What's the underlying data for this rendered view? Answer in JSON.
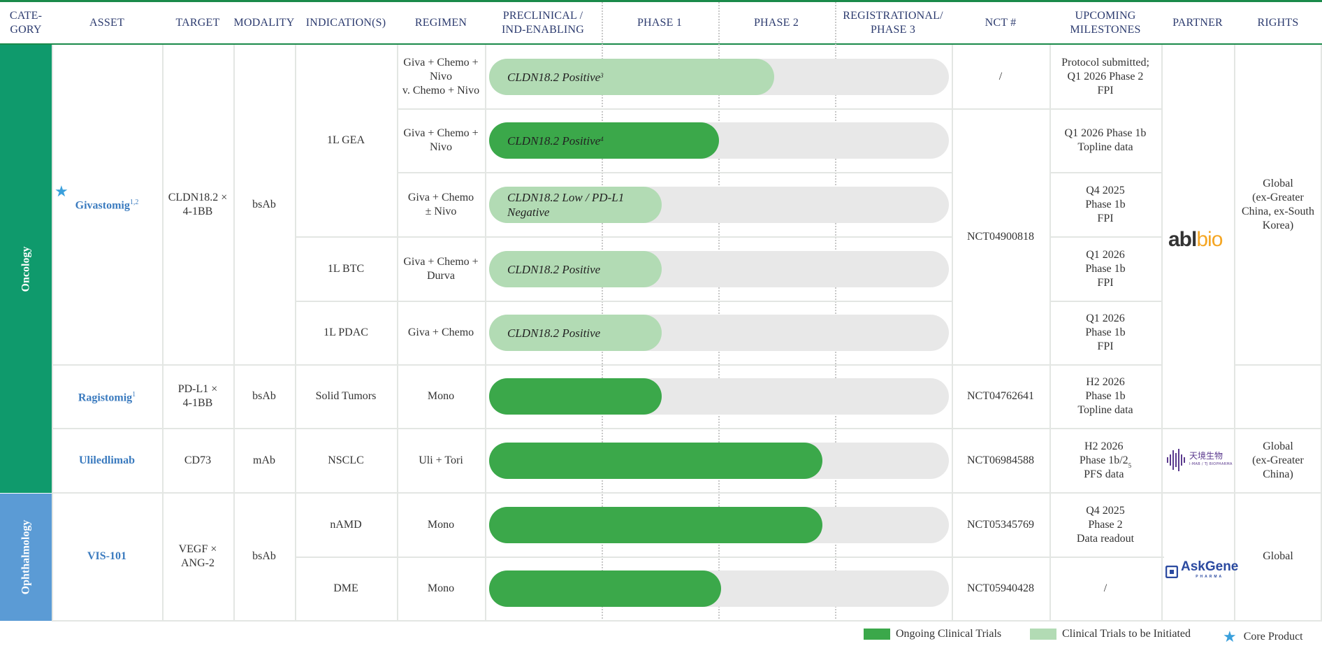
{
  "headers": {
    "category": "CATE-\nGORY",
    "asset": "ASSET",
    "target": "TARGET",
    "modality": "MODALITY",
    "indications": "INDICATION(S)",
    "regimen": "REGIMEN",
    "preclinical": "PRECLINICAL /\nIND-ENABLING",
    "phase1": "PHASE 1",
    "phase2": "PHASE 2",
    "phase3": "REGISTRATIONAL/\nPHASE 3",
    "nct": "NCT #",
    "milestones": "UPCOMING\nMILESTONES",
    "partner": "PARTNER",
    "rights": "RIGHTS"
  },
  "categories": [
    {
      "label": "Oncology",
      "color": "#0f9a6c"
    },
    {
      "label": "Ophthalmology",
      "color": "#5b9bd5"
    }
  ],
  "assets": {
    "givastomig": {
      "name": "Givastomig",
      "sup": "1,2",
      "target": "CLDN18.2 ×\n4-1BB",
      "modality": "bsAb"
    },
    "ragistomig": {
      "name": "Ragistomig",
      "sup": "1",
      "target": "PD-L1 ×\n4-1BB",
      "modality": "bsAb"
    },
    "uliledlimab": {
      "name": "Uliledlimab",
      "sup": "",
      "target": "CD73",
      "modality": "mAb"
    },
    "vis101": {
      "name": "VIS-101",
      "sup": "",
      "target": "VEGF ×\nANG-2",
      "modality": "bsAb"
    }
  },
  "indications": {
    "gea": "1L GEA",
    "btc": "1L BTC",
    "pdac": "1L PDAC",
    "solid": "Solid Tumors",
    "nsclc": "NSCLC",
    "namd": "nAMD",
    "dme": "DME"
  },
  "rows": [
    {
      "regimen": "Giva + Chemo +\nNivo\nv. Chemo + Nivo",
      "bar_label": "CLDN18.2 Positive",
      "bar_sup": "3",
      "status": "initiated",
      "progress": 0.62,
      "milestone": "Protocol submitted;\nQ1 2026 Phase 2\nFPI"
    },
    {
      "regimen": "Giva + Chemo +\nNivo",
      "bar_label": "CLDN18.2 Positive",
      "bar_sup": "4",
      "status": "ongoing",
      "progress": 0.5,
      "milestone": "Q1 2026 Phase 1b\nTopline data"
    },
    {
      "regimen": "Giva + Chemo\n± Nivo",
      "bar_label": "CLDN18.2 Low / PD-L1\nNegative",
      "bar_sup": "",
      "status": "initiated",
      "progress": 0.375,
      "milestone": "Q4 2025\nPhase 1b\nFPI"
    },
    {
      "regimen": "Giva + Chemo +\nDurva",
      "bar_label": "CLDN18.2 Positive",
      "bar_sup": "",
      "status": "initiated",
      "progress": 0.375,
      "milestone": "Q1 2026\nPhase 1b\nFPI"
    },
    {
      "regimen": "Giva + Chemo",
      "bar_label": "CLDN18.2 Positive",
      "bar_sup": "",
      "status": "initiated",
      "progress": 0.375,
      "milestone": "Q1 2026\nPhase 1b\nFPI"
    },
    {
      "regimen": "Mono",
      "bar_label": "",
      "bar_sup": "",
      "status": "ongoing",
      "progress": 0.375,
      "milestone": "H2 2026\nPhase 1b\nTopline data"
    },
    {
      "regimen": "Uli + Tori",
      "bar_label": "",
      "bar_sup": "",
      "status": "ongoing",
      "progress": 0.725,
      "milestone": "H2 2026\nPhase 1b/2\nPFS data",
      "milestone_sup": "5"
    },
    {
      "regimen": "Mono",
      "bar_label": "",
      "bar_sup": "",
      "status": "ongoing",
      "progress": 0.725,
      "milestone": "Q4 2025\nPhase 2\nData readout"
    },
    {
      "regimen": "Mono",
      "bar_label": "",
      "bar_sup": "",
      "status": "ongoing",
      "progress": 0.505,
      "milestone": "/"
    }
  ],
  "nct": {
    "r0": "/",
    "giva": "NCT04900818",
    "ragi": "NCT04762641",
    "uli": "NCT06984588",
    "namd": "NCT05345769",
    "dme": "NCT05940428"
  },
  "partners": {
    "abl_main": "abl",
    "abl_accent": "bio",
    "tj_cn": "天境生物",
    "tj_en": "I-MAB / TJ BIOPHARMA",
    "askgene": "AskGene",
    "askgene_sub": "PHARMA"
  },
  "rights": {
    "givastomig": "Global\n(ex-Greater\nChina, ex-South\nKorea)",
    "uliledlimab": "Global\n(ex-Greater\nChina)",
    "vis101": "Global"
  },
  "legend": {
    "ongoing": "Ongoing Clinical Trials",
    "initiated": "Clinical Trials to be Initiated",
    "core": "Core Product"
  },
  "colors": {
    "ongoing": "#3ba84a",
    "initiated": "#b2dbb4",
    "track": "#e8e8e8",
    "star": "#3aa0dc"
  }
}
